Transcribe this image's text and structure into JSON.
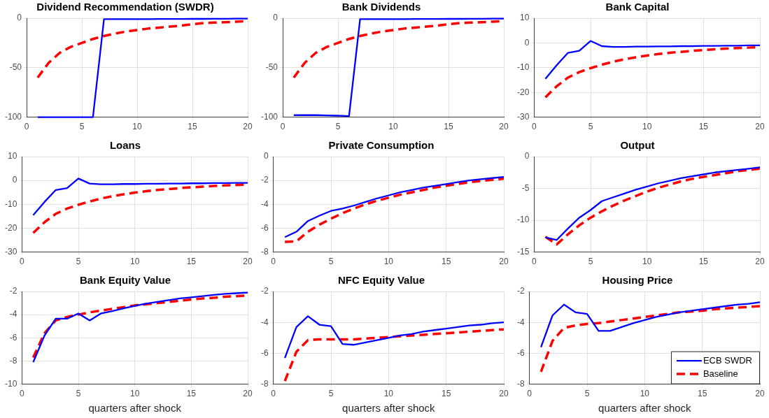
{
  "chart_data": [
    {
      "type": "line",
      "title": "Dividend Recommendation (SWDR)",
      "x": [
        1,
        2,
        3,
        4,
        5,
        6,
        7,
        8,
        9,
        10,
        11,
        12,
        13,
        14,
        15,
        16,
        17,
        18,
        19,
        20
      ],
      "xlim": [
        0,
        20
      ],
      "xticks": [
        0,
        5,
        10,
        15,
        20
      ],
      "ylim": [
        -100,
        0
      ],
      "yticks": [
        -100,
        -50,
        0
      ],
      "grid": true,
      "legend": false,
      "marker": "none",
      "series": [
        {
          "color": "#0000ff",
          "line_style": "solid",
          "values": [
            -100,
            -100,
            -100,
            -100,
            -100,
            -100,
            -1,
            -1,
            -1,
            -1,
            -1,
            -0.8,
            -0.8,
            -0.8,
            -0.7,
            -0.7,
            -0.6,
            -0.6,
            -0.5,
            -0.5
          ]
        },
        {
          "color": "#ff0000",
          "line_style": "dashed",
          "values": [
            -60,
            -45,
            -35,
            -29,
            -25,
            -21,
            -18,
            -15.5,
            -13.5,
            -12,
            -10.5,
            -9.5,
            -8.5,
            -7.5,
            -6,
            -5,
            -4.5,
            -4,
            -3.5,
            -3
          ]
        }
      ]
    },
    {
      "type": "line",
      "title": "Bank Dividends",
      "x": [
        1,
        2,
        3,
        4,
        5,
        6,
        7,
        8,
        9,
        10,
        11,
        12,
        13,
        14,
        15,
        16,
        17,
        18,
        19,
        20
      ],
      "xlim": [
        0,
        20
      ],
      "xticks": [
        0,
        5,
        10,
        15,
        20
      ],
      "ylim": [
        -100,
        0
      ],
      "yticks": [
        -100,
        -50,
        0
      ],
      "grid": true,
      "legend": false,
      "marker": "none",
      "series": [
        {
          "color": "#0000ff",
          "line_style": "solid",
          "values": [
            -98,
            -98,
            -98,
            -98.3,
            -98.5,
            -99,
            -1,
            -1,
            -1,
            -1,
            -1,
            -0.8,
            -0.8,
            -0.8,
            -0.7,
            -0.7,
            -0.6,
            -0.6,
            -0.5,
            -0.5
          ]
        },
        {
          "color": "#ff0000",
          "line_style": "dashed",
          "values": [
            -60,
            -45,
            -35,
            -29,
            -25,
            -21,
            -18,
            -15.5,
            -13.5,
            -12,
            -10.5,
            -9.5,
            -8.5,
            -7.5,
            -6,
            -5,
            -4.5,
            -4,
            -3.5,
            -3
          ]
        }
      ]
    },
    {
      "type": "line",
      "title": "Bank Capital",
      "x": [
        1,
        2,
        3,
        4,
        5,
        6,
        7,
        8,
        9,
        10,
        11,
        12,
        13,
        14,
        15,
        16,
        17,
        18,
        19,
        20
      ],
      "xlim": [
        0,
        20
      ],
      "xticks": [
        0,
        5,
        10,
        15,
        20
      ],
      "ylim": [
        -30,
        10
      ],
      "yticks": [
        -30,
        -20,
        -10,
        0,
        10
      ],
      "grid": true,
      "legend": false,
      "marker": "none",
      "series": [
        {
          "color": "#0000ff",
          "line_style": "solid",
          "values": [
            -14.5,
            -9,
            -4,
            -3.2,
            0.8,
            -1.3,
            -1.6,
            -1.6,
            -1.5,
            -1.5,
            -1.4,
            -1.4,
            -1.3,
            -1.3,
            -1.2,
            -1.2,
            -1.1,
            -1.1,
            -1,
            -1
          ]
        },
        {
          "color": "#ff0000",
          "line_style": "dashed",
          "values": [
            -22,
            -17.5,
            -14,
            -11.8,
            -10.2,
            -8.8,
            -7.6,
            -6.6,
            -5.8,
            -5.1,
            -4.5,
            -4,
            -3.6,
            -3.2,
            -2.9,
            -2.6,
            -2.3,
            -2.1,
            -1.9,
            -1.7
          ]
        }
      ]
    },
    {
      "type": "line",
      "title": "Loans",
      "x": [
        1,
        2,
        3,
        4,
        5,
        6,
        7,
        8,
        9,
        10,
        11,
        12,
        13,
        14,
        15,
        16,
        17,
        18,
        19,
        20
      ],
      "xlim": [
        0,
        20
      ],
      "xticks": [
        0,
        5,
        10,
        15,
        20
      ],
      "ylim": [
        -30,
        10
      ],
      "yticks": [
        -30,
        -20,
        -10,
        0,
        10
      ],
      "grid": true,
      "legend": false,
      "marker": "none",
      "series": [
        {
          "color": "#0000ff",
          "line_style": "solid",
          "values": [
            -14.5,
            -9,
            -4,
            -3.2,
            0.8,
            -1.3,
            -1.6,
            -1.6,
            -1.5,
            -1.5,
            -1.4,
            -1.4,
            -1.3,
            -1.3,
            -1.2,
            -1.2,
            -1.1,
            -1.1,
            -1,
            -1
          ]
        },
        {
          "color": "#ff0000",
          "line_style": "dashed",
          "values": [
            -22,
            -17.5,
            -14,
            -11.8,
            -10.2,
            -8.8,
            -7.6,
            -6.6,
            -5.8,
            -5.1,
            -4.5,
            -4,
            -3.6,
            -3.2,
            -2.9,
            -2.6,
            -2.3,
            -2.1,
            -1.9,
            -1.7
          ]
        }
      ]
    },
    {
      "type": "line",
      "title": "Private Consumption",
      "x": [
        1,
        2,
        3,
        4,
        5,
        6,
        7,
        8,
        9,
        10,
        11,
        12,
        13,
        14,
        15,
        16,
        17,
        18,
        19,
        20
      ],
      "xlim": [
        0,
        20
      ],
      "xticks": [
        0,
        5,
        10,
        15,
        20
      ],
      "ylim": [
        -8,
        0
      ],
      "yticks": [
        -8,
        -6,
        -4,
        -2,
        0
      ],
      "grid": true,
      "legend": false,
      "marker": "none",
      "series": [
        {
          "color": "#0000ff",
          "line_style": "solid",
          "values": [
            -6.75,
            -6.3,
            -5.4,
            -4.95,
            -4.55,
            -4.35,
            -4.1,
            -3.8,
            -3.5,
            -3.25,
            -3,
            -2.8,
            -2.6,
            -2.45,
            -2.3,
            -2.15,
            -2,
            -1.9,
            -1.8,
            -1.7
          ]
        },
        {
          "color": "#ff0000",
          "line_style": "dashed",
          "values": [
            -7.15,
            -7.1,
            -6.3,
            -5.7,
            -5.2,
            -4.75,
            -4.35,
            -4,
            -3.7,
            -3.45,
            -3.2,
            -3,
            -2.8,
            -2.6,
            -2.45,
            -2.3,
            -2.15,
            -2.05,
            -1.95,
            -1.85
          ]
        }
      ]
    },
    {
      "type": "line",
      "title": "Output",
      "x": [
        1,
        2,
        3,
        4,
        5,
        6,
        7,
        8,
        9,
        10,
        11,
        12,
        13,
        14,
        15,
        16,
        17,
        18,
        19,
        20
      ],
      "xlim": [
        0,
        20
      ],
      "xticks": [
        0,
        5,
        10,
        15,
        20
      ],
      "ylim": [
        -15,
        0
      ],
      "yticks": [
        -15,
        -10,
        -5,
        0
      ],
      "grid": true,
      "legend": false,
      "marker": "none",
      "series": [
        {
          "color": "#0000ff",
          "line_style": "solid",
          "values": [
            -12.7,
            -13.1,
            -11.3,
            -9.6,
            -8.4,
            -7,
            -6.4,
            -5.8,
            -5.2,
            -4.7,
            -4.2,
            -3.8,
            -3.4,
            -3.1,
            -2.8,
            -2.5,
            -2.3,
            -2.1,
            -1.9,
            -1.7
          ]
        },
        {
          "color": "#ff0000",
          "line_style": "dashed",
          "values": [
            -12.6,
            -13.8,
            -12.2,
            -10.8,
            -9.6,
            -8.6,
            -7.7,
            -6.9,
            -6.2,
            -5.5,
            -4.9,
            -4.4,
            -3.9,
            -3.5,
            -3.2,
            -2.9,
            -2.6,
            -2.3,
            -2.1,
            -1.9
          ]
        }
      ]
    },
    {
      "type": "line",
      "title": "Bank Equity Value",
      "xlabel": "quarters after shock",
      "x": [
        1,
        2,
        3,
        4,
        5,
        6,
        7,
        8,
        9,
        10,
        11,
        12,
        13,
        14,
        15,
        16,
        17,
        18,
        19,
        20
      ],
      "xlim": [
        0,
        20
      ],
      "xticks": [
        0,
        5,
        10,
        15,
        20
      ],
      "ylim": [
        -10,
        -2
      ],
      "yticks": [
        -10,
        -8,
        -6,
        -4,
        -2
      ],
      "grid": true,
      "legend": false,
      "marker": "none",
      "series": [
        {
          "color": "#0000ff",
          "line_style": "solid",
          "values": [
            -8.1,
            -5.8,
            -4.35,
            -4.35,
            -3.9,
            -4.5,
            -3.9,
            -3.7,
            -3.45,
            -3.25,
            -3.05,
            -2.9,
            -2.75,
            -2.6,
            -2.5,
            -2.4,
            -2.3,
            -2.2,
            -2.15,
            -2.1
          ]
        },
        {
          "color": "#ff0000",
          "line_style": "dashed",
          "values": [
            -7.7,
            -5.6,
            -4.5,
            -4.2,
            -4,
            -3.8,
            -3.65,
            -3.5,
            -3.35,
            -3.2,
            -3.1,
            -3,
            -2.9,
            -2.8,
            -2.7,
            -2.6,
            -2.55,
            -2.45,
            -2.4,
            -2.35
          ]
        }
      ]
    },
    {
      "type": "line",
      "title": "NFC Equity Value",
      "xlabel": "quarters after shock",
      "x": [
        1,
        2,
        3,
        4,
        5,
        6,
        7,
        8,
        9,
        10,
        11,
        12,
        13,
        14,
        15,
        16,
        17,
        18,
        19,
        20
      ],
      "xlim": [
        0,
        20
      ],
      "xticks": [
        0,
        5,
        10,
        15,
        20
      ],
      "ylim": [
        -8,
        -2
      ],
      "yticks": [
        -8,
        -6,
        -4,
        -2
      ],
      "grid": true,
      "legend": false,
      "marker": "none",
      "series": [
        {
          "color": "#0000ff",
          "line_style": "solid",
          "values": [
            -6.3,
            -4.3,
            -3.6,
            -4.15,
            -4.25,
            -5.4,
            -5.45,
            -5.3,
            -5.15,
            -5,
            -4.85,
            -4.75,
            -4.6,
            -4.5,
            -4.4,
            -4.3,
            -4.2,
            -4.15,
            -4.05,
            -4
          ]
        },
        {
          "color": "#ff0000",
          "line_style": "dashed",
          "values": [
            -7.8,
            -5.9,
            -5.15,
            -5.1,
            -5.1,
            -5.1,
            -5.1,
            -5.05,
            -5,
            -4.95,
            -4.9,
            -4.85,
            -4.8,
            -4.75,
            -4.7,
            -4.65,
            -4.6,
            -4.55,
            -4.5,
            -4.45
          ]
        }
      ]
    },
    {
      "type": "line",
      "title": "Housing Price",
      "xlabel": "quarters after shock",
      "x": [
        1,
        2,
        3,
        4,
        5,
        6,
        7,
        8,
        9,
        10,
        11,
        12,
        13,
        14,
        15,
        16,
        17,
        18,
        19,
        20
      ],
      "xlim": [
        0,
        20
      ],
      "xticks": [
        0,
        5,
        10,
        15,
        20
      ],
      "ylim": [
        -8,
        -2
      ],
      "yticks": [
        -8,
        -6,
        -4,
        -2
      ],
      "grid": true,
      "legend": "bottom right",
      "marker": "none",
      "series": [
        {
          "name": "ECB SWDR",
          "color": "#0000ff",
          "line_style": "solid",
          "values": [
            -5.6,
            -3.55,
            -2.85,
            -3.35,
            -3.45,
            -4.55,
            -4.55,
            -4.3,
            -4.05,
            -3.85,
            -3.65,
            -3.5,
            -3.35,
            -3.25,
            -3.15,
            -3.05,
            -2.95,
            -2.85,
            -2.8,
            -2.7
          ]
        },
        {
          "name": "Baseline",
          "color": "#ff0000",
          "line_style": "dashed",
          "values": [
            -7.2,
            -5.2,
            -4.35,
            -4.2,
            -4.1,
            -4.05,
            -3.95,
            -3.85,
            -3.75,
            -3.65,
            -3.55,
            -3.45,
            -3.35,
            -3.3,
            -3.25,
            -3.15,
            -3.1,
            -3.05,
            -3,
            -2.95
          ]
        }
      ]
    }
  ]
}
